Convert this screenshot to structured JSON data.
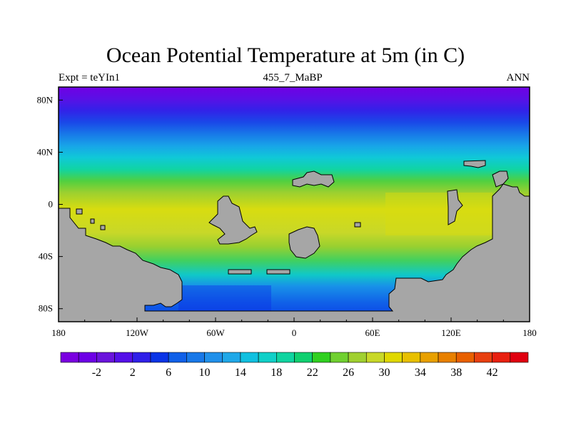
{
  "figure": {
    "title": "Ocean Potential Temperature at 5m (in C)",
    "left_label": "Expt = teYIn1",
    "center_label": "455_7_MaBP",
    "right_label": "ANN"
  },
  "map": {
    "projection": "cylindrical-equidistant",
    "lon_range": [
      -180,
      180
    ],
    "lat_range": [
      -90,
      90
    ],
    "land_color": "#a6a6a6",
    "x_ticks": [
      "180",
      "120W",
      "60W",
      "0",
      "60E",
      "120E",
      "180"
    ],
    "y_ticks": [
      "80N",
      "40N",
      "0",
      "40S",
      "80S"
    ]
  },
  "chart_data": {
    "type": "heatmap",
    "title": "Ocean Potential Temperature at 5m (in C)",
    "variable": "Ocean Potential Temperature at 5m",
    "units": "C",
    "zonal_mean_profile": {
      "lat": [
        90,
        80,
        70,
        60,
        50,
        40,
        30,
        20,
        10,
        0,
        -10,
        -20,
        -30,
        -40,
        -50,
        -60,
        -70,
        -80,
        -90
      ],
      "value": [
        0,
        2,
        7,
        13,
        18,
        22,
        25,
        28,
        30,
        30,
        30,
        28,
        26,
        22,
        16,
        10,
        6,
        4,
        3
      ]
    },
    "colorbar": {
      "labels": [
        "-2",
        "2",
        "6",
        "10",
        "14",
        "18",
        "22",
        "26",
        "30",
        "34",
        "38",
        "42"
      ],
      "label_values": [
        -2,
        2,
        6,
        10,
        14,
        18,
        22,
        26,
        30,
        34,
        38,
        42
      ],
      "colors": [
        "#7a00e0",
        "#6d00e6",
        "#6a14dc",
        "#5510e8",
        "#3020e8",
        "#0a34e6",
        "#1060e8",
        "#1878e8",
        "#2090ea",
        "#20a8e8",
        "#10c0e0",
        "#10d0c8",
        "#10d4a0",
        "#10d070",
        "#30d020",
        "#70d030",
        "#a0d030",
        "#c8d828",
        "#e0d800",
        "#e8c000",
        "#e8a000",
        "#e88000",
        "#e86000",
        "#e84010",
        "#e82010",
        "#e00010"
      ]
    }
  }
}
